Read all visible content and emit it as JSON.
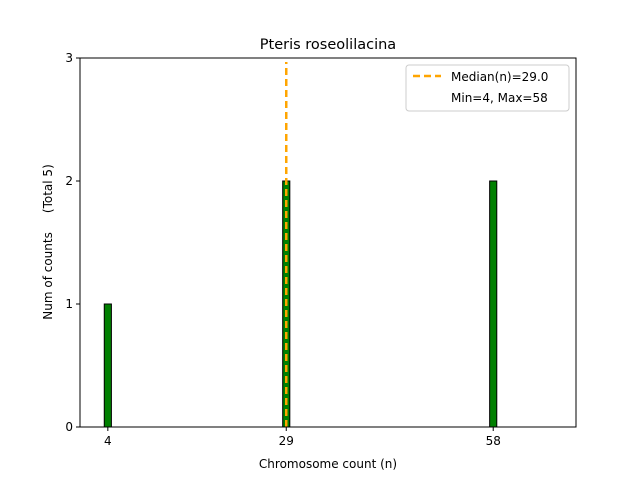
{
  "chart_data": {
    "type": "bar",
    "title": "Pteris roseolilacina",
    "xlabel": "Chromosome count (n)",
    "ylabel": "Num of counts     (Total 5)",
    "x": [
      4,
      29,
      58
    ],
    "values": [
      1,
      2,
      2
    ],
    "bar_width": 1,
    "xlim": [
      0.1,
      69.6
    ],
    "ylim": [
      0,
      3
    ],
    "xticks": [
      4,
      29,
      58
    ],
    "yticks": [
      0,
      1,
      2,
      3
    ],
    "bar_color": "#008000",
    "bar_edge_color": "#000000",
    "median": 29.0,
    "median_color": "#FFA500",
    "grid": false,
    "legend_placement": "top-right",
    "legend": [
      "Median(n)=29.0",
      "Min=4, Max=58"
    ]
  }
}
